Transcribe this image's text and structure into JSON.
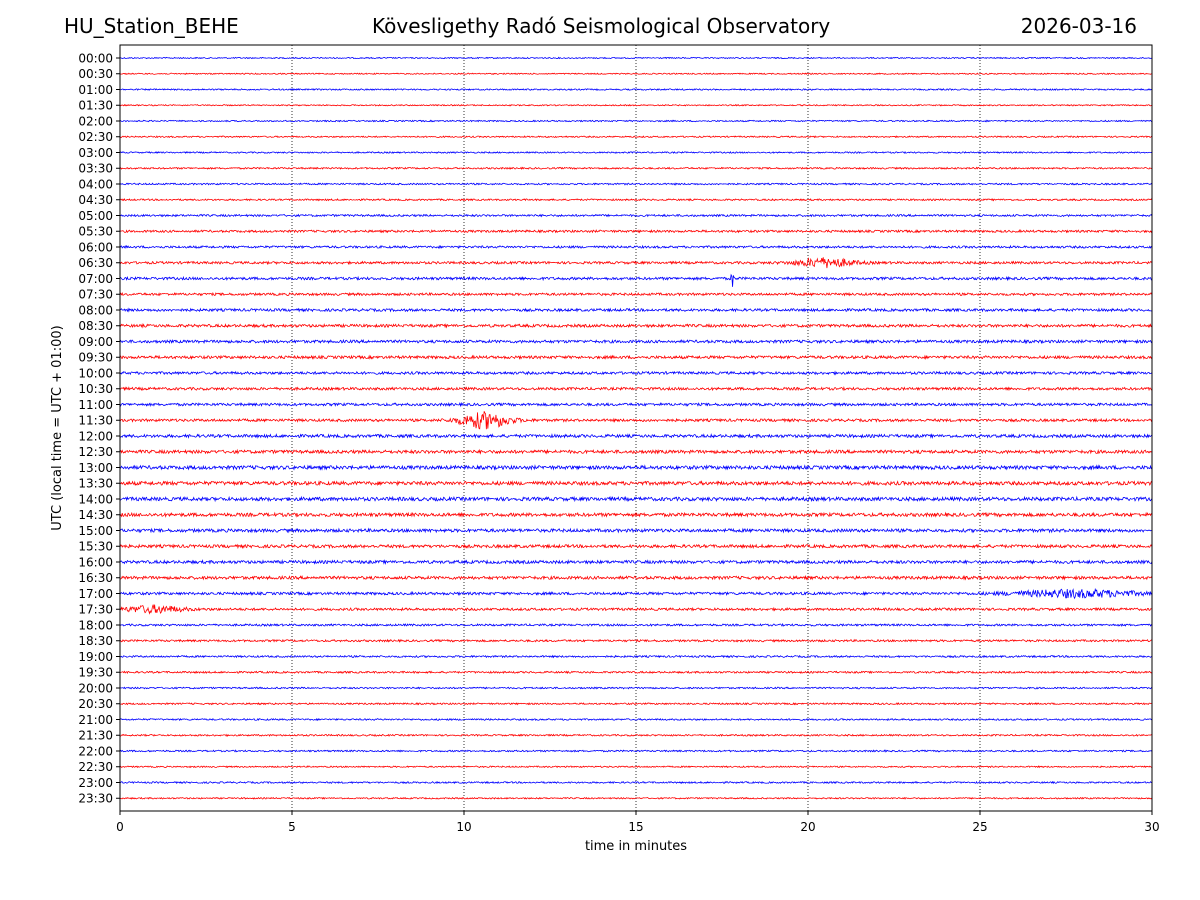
{
  "header": {
    "station": "HU_Station_BEHE",
    "title": "Kövesligethy Radó Seismological Observatory",
    "date": "2026-03-16"
  },
  "chart_data": {
    "type": "line",
    "title": "Kövesligethy Radó Seismological Observatory",
    "xlabel": "time in minutes",
    "ylabel": "UTC (local time = UTC + 01:00)",
    "xlim": [
      0,
      30
    ],
    "x_ticks": [
      0,
      5,
      10,
      15,
      20,
      25,
      30
    ],
    "vertical_gridlines": [
      5,
      10,
      15,
      20,
      25
    ],
    "grid": "vertical dotted",
    "trace_colors": [
      "#0000ff",
      "#ff0000"
    ],
    "rows": [
      {
        "label": "00:00",
        "color": "#0000ff",
        "noise": 0.6
      },
      {
        "label": "00:30",
        "color": "#ff0000",
        "noise": 0.6
      },
      {
        "label": "01:00",
        "color": "#0000ff",
        "noise": 0.7
      },
      {
        "label": "01:30",
        "color": "#ff0000",
        "noise": 0.6
      },
      {
        "label": "02:00",
        "color": "#0000ff",
        "noise": 0.7
      },
      {
        "label": "02:30",
        "color": "#ff0000",
        "noise": 0.7
      },
      {
        "label": "03:00",
        "color": "#0000ff",
        "noise": 0.7
      },
      {
        "label": "03:30",
        "color": "#ff0000",
        "noise": 0.8
      },
      {
        "label": "04:00",
        "color": "#0000ff",
        "noise": 0.8
      },
      {
        "label": "04:30",
        "color": "#ff0000",
        "noise": 0.8
      },
      {
        "label": "05:00",
        "color": "#0000ff",
        "noise": 1.0
      },
      {
        "label": "05:30",
        "color": "#ff0000",
        "noise": 1.1
      },
      {
        "label": "06:00",
        "color": "#0000ff",
        "noise": 1.1
      },
      {
        "label": "06:30",
        "color": "#ff0000",
        "noise": 1.2,
        "events": [
          {
            "t": 20.5,
            "amp": 4.5,
            "dur": 1.6
          }
        ]
      },
      {
        "label": "07:00",
        "color": "#0000ff",
        "noise": 1.3,
        "events": [
          {
            "t": 17.8,
            "amp": 12,
            "dur": 0.06
          }
        ]
      },
      {
        "label": "07:30",
        "color": "#ff0000",
        "noise": 1.2
      },
      {
        "label": "08:00",
        "color": "#0000ff",
        "noise": 1.3
      },
      {
        "label": "08:30",
        "color": "#ff0000",
        "noise": 1.4
      },
      {
        "label": "09:00",
        "color": "#0000ff",
        "noise": 1.4
      },
      {
        "label": "09:30",
        "color": "#ff0000",
        "noise": 1.4
      },
      {
        "label": "10:00",
        "color": "#0000ff",
        "noise": 1.3
      },
      {
        "label": "10:30",
        "color": "#ff0000",
        "noise": 1.3
      },
      {
        "label": "11:00",
        "color": "#0000ff",
        "noise": 1.3
      },
      {
        "label": "11:30",
        "color": "#ff0000",
        "noise": 1.3,
        "events": [
          {
            "t": 10.6,
            "amp": 8,
            "dur": 1.4
          }
        ]
      },
      {
        "label": "12:00",
        "color": "#0000ff",
        "noise": 1.5
      },
      {
        "label": "12:30",
        "color": "#ff0000",
        "noise": 1.6
      },
      {
        "label": "13:00",
        "color": "#0000ff",
        "noise": 1.8
      },
      {
        "label": "13:30",
        "color": "#ff0000",
        "noise": 1.8
      },
      {
        "label": "14:00",
        "color": "#0000ff",
        "noise": 1.8
      },
      {
        "label": "14:30",
        "color": "#ff0000",
        "noise": 1.7
      },
      {
        "label": "15:00",
        "color": "#0000ff",
        "noise": 1.6
      },
      {
        "label": "15:30",
        "color": "#ff0000",
        "noise": 1.5
      },
      {
        "label": "16:00",
        "color": "#0000ff",
        "noise": 1.5
      },
      {
        "label": "16:30",
        "color": "#ff0000",
        "noise": 1.5
      },
      {
        "label": "17:00",
        "color": "#0000ff",
        "noise": 1.3,
        "events": [
          {
            "t": 27.8,
            "amp": 3.5,
            "dur": 3.5
          }
        ]
      },
      {
        "label": "17:30",
        "color": "#ff0000",
        "noise": 1.2,
        "events": [
          {
            "t": 1.0,
            "amp": 3.5,
            "dur": 1.6
          }
        ]
      },
      {
        "label": "18:00",
        "color": "#0000ff",
        "noise": 1.0
      },
      {
        "label": "18:30",
        "color": "#ff0000",
        "noise": 1.0
      },
      {
        "label": "19:00",
        "color": "#0000ff",
        "noise": 0.9
      },
      {
        "label": "19:30",
        "color": "#ff0000",
        "noise": 0.9
      },
      {
        "label": "20:00",
        "color": "#0000ff",
        "noise": 0.8
      },
      {
        "label": "20:30",
        "color": "#ff0000",
        "noise": 0.8
      },
      {
        "label": "21:00",
        "color": "#0000ff",
        "noise": 0.8
      },
      {
        "label": "21:30",
        "color": "#ff0000",
        "noise": 0.8
      },
      {
        "label": "22:00",
        "color": "#0000ff",
        "noise": 0.8
      },
      {
        "label": "22:30",
        "color": "#ff0000",
        "noise": 0.7
      },
      {
        "label": "23:00",
        "color": "#0000ff",
        "noise": 0.8
      },
      {
        "label": "23:30",
        "color": "#ff0000",
        "noise": 0.7
      }
    ]
  }
}
